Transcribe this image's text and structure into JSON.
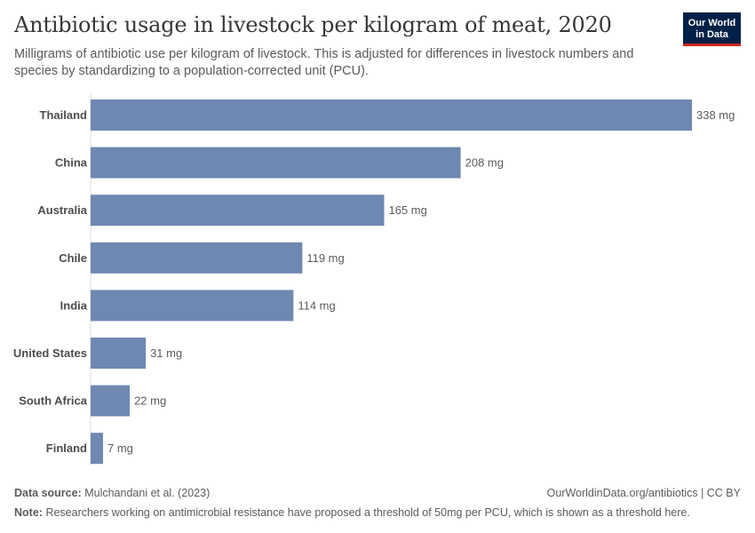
{
  "header": {
    "title": "Antibiotic usage in livestock per kilogram of meat, 2020",
    "subtitle": "Milligrams of antibiotic use per kilogram of livestock. This is adjusted for differences in livestock numbers and species by standardizing to a population-corrected unit (PCU).",
    "logo_line1": "Our World",
    "logo_line2": "in Data"
  },
  "footer": {
    "source_label": "Data source:",
    "source_text": "Mulchandani et al. (2023)",
    "url": "OurWorldinData.org/antibiotics | CC BY",
    "note_label": "Note:",
    "note_text": "Researchers working on antimicrobial resistance have proposed a threshold of 50mg per PCU, which is shown as a threshold here."
  },
  "colors": {
    "bar": "#6e88b2",
    "logo_bg": "#002147",
    "logo_accent": "#ce261e"
  },
  "chart_data": {
    "type": "bar",
    "orientation": "horizontal",
    "title": "Antibiotic usage in livestock per kilogram of meat, 2020",
    "categories": [
      "Thailand",
      "China",
      "Australia",
      "Chile",
      "India",
      "United States",
      "South Africa",
      "Finland"
    ],
    "values": [
      338,
      208,
      165,
      119,
      114,
      31,
      22,
      7
    ],
    "labels": [
      "338 mg",
      "208 mg",
      "165 mg",
      "119 mg",
      "114 mg",
      "31 mg",
      "22 mg",
      "7 mg"
    ],
    "unit": "mg",
    "xlim": [
      0,
      338
    ]
  }
}
